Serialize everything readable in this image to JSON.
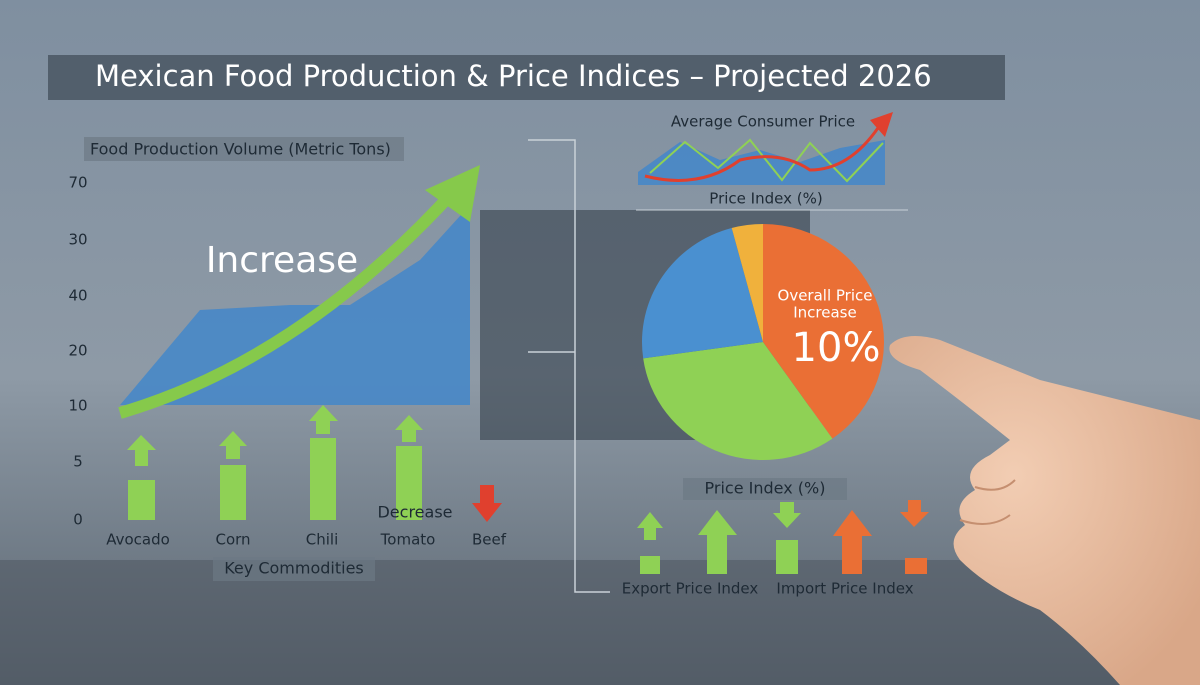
{
  "title": "Mexican Food Production & Price Indices – Projected 2026",
  "production": {
    "label": "Food Production Volume (Metric Tons)",
    "ticks": [
      "70",
      "30",
      "40",
      "20",
      "10",
      "5",
      "0"
    ],
    "annotation": "Increase",
    "commodities": [
      "Avocado",
      "Corn",
      "Chili",
      "Tomato",
      "Beef"
    ],
    "decrease": "Decrease",
    "axis_label": "Key Commodities"
  },
  "consumer_price": {
    "title": "Average Consumer Price",
    "axis_label": "Price Index (%)"
  },
  "pie": {
    "label_line1": "Overall Price",
    "label_line2": "Increase",
    "value": "10%"
  },
  "indices": {
    "title": "Price Index (%)",
    "labels": [
      "Export Price Index",
      "Import Price Index"
    ]
  }
}
